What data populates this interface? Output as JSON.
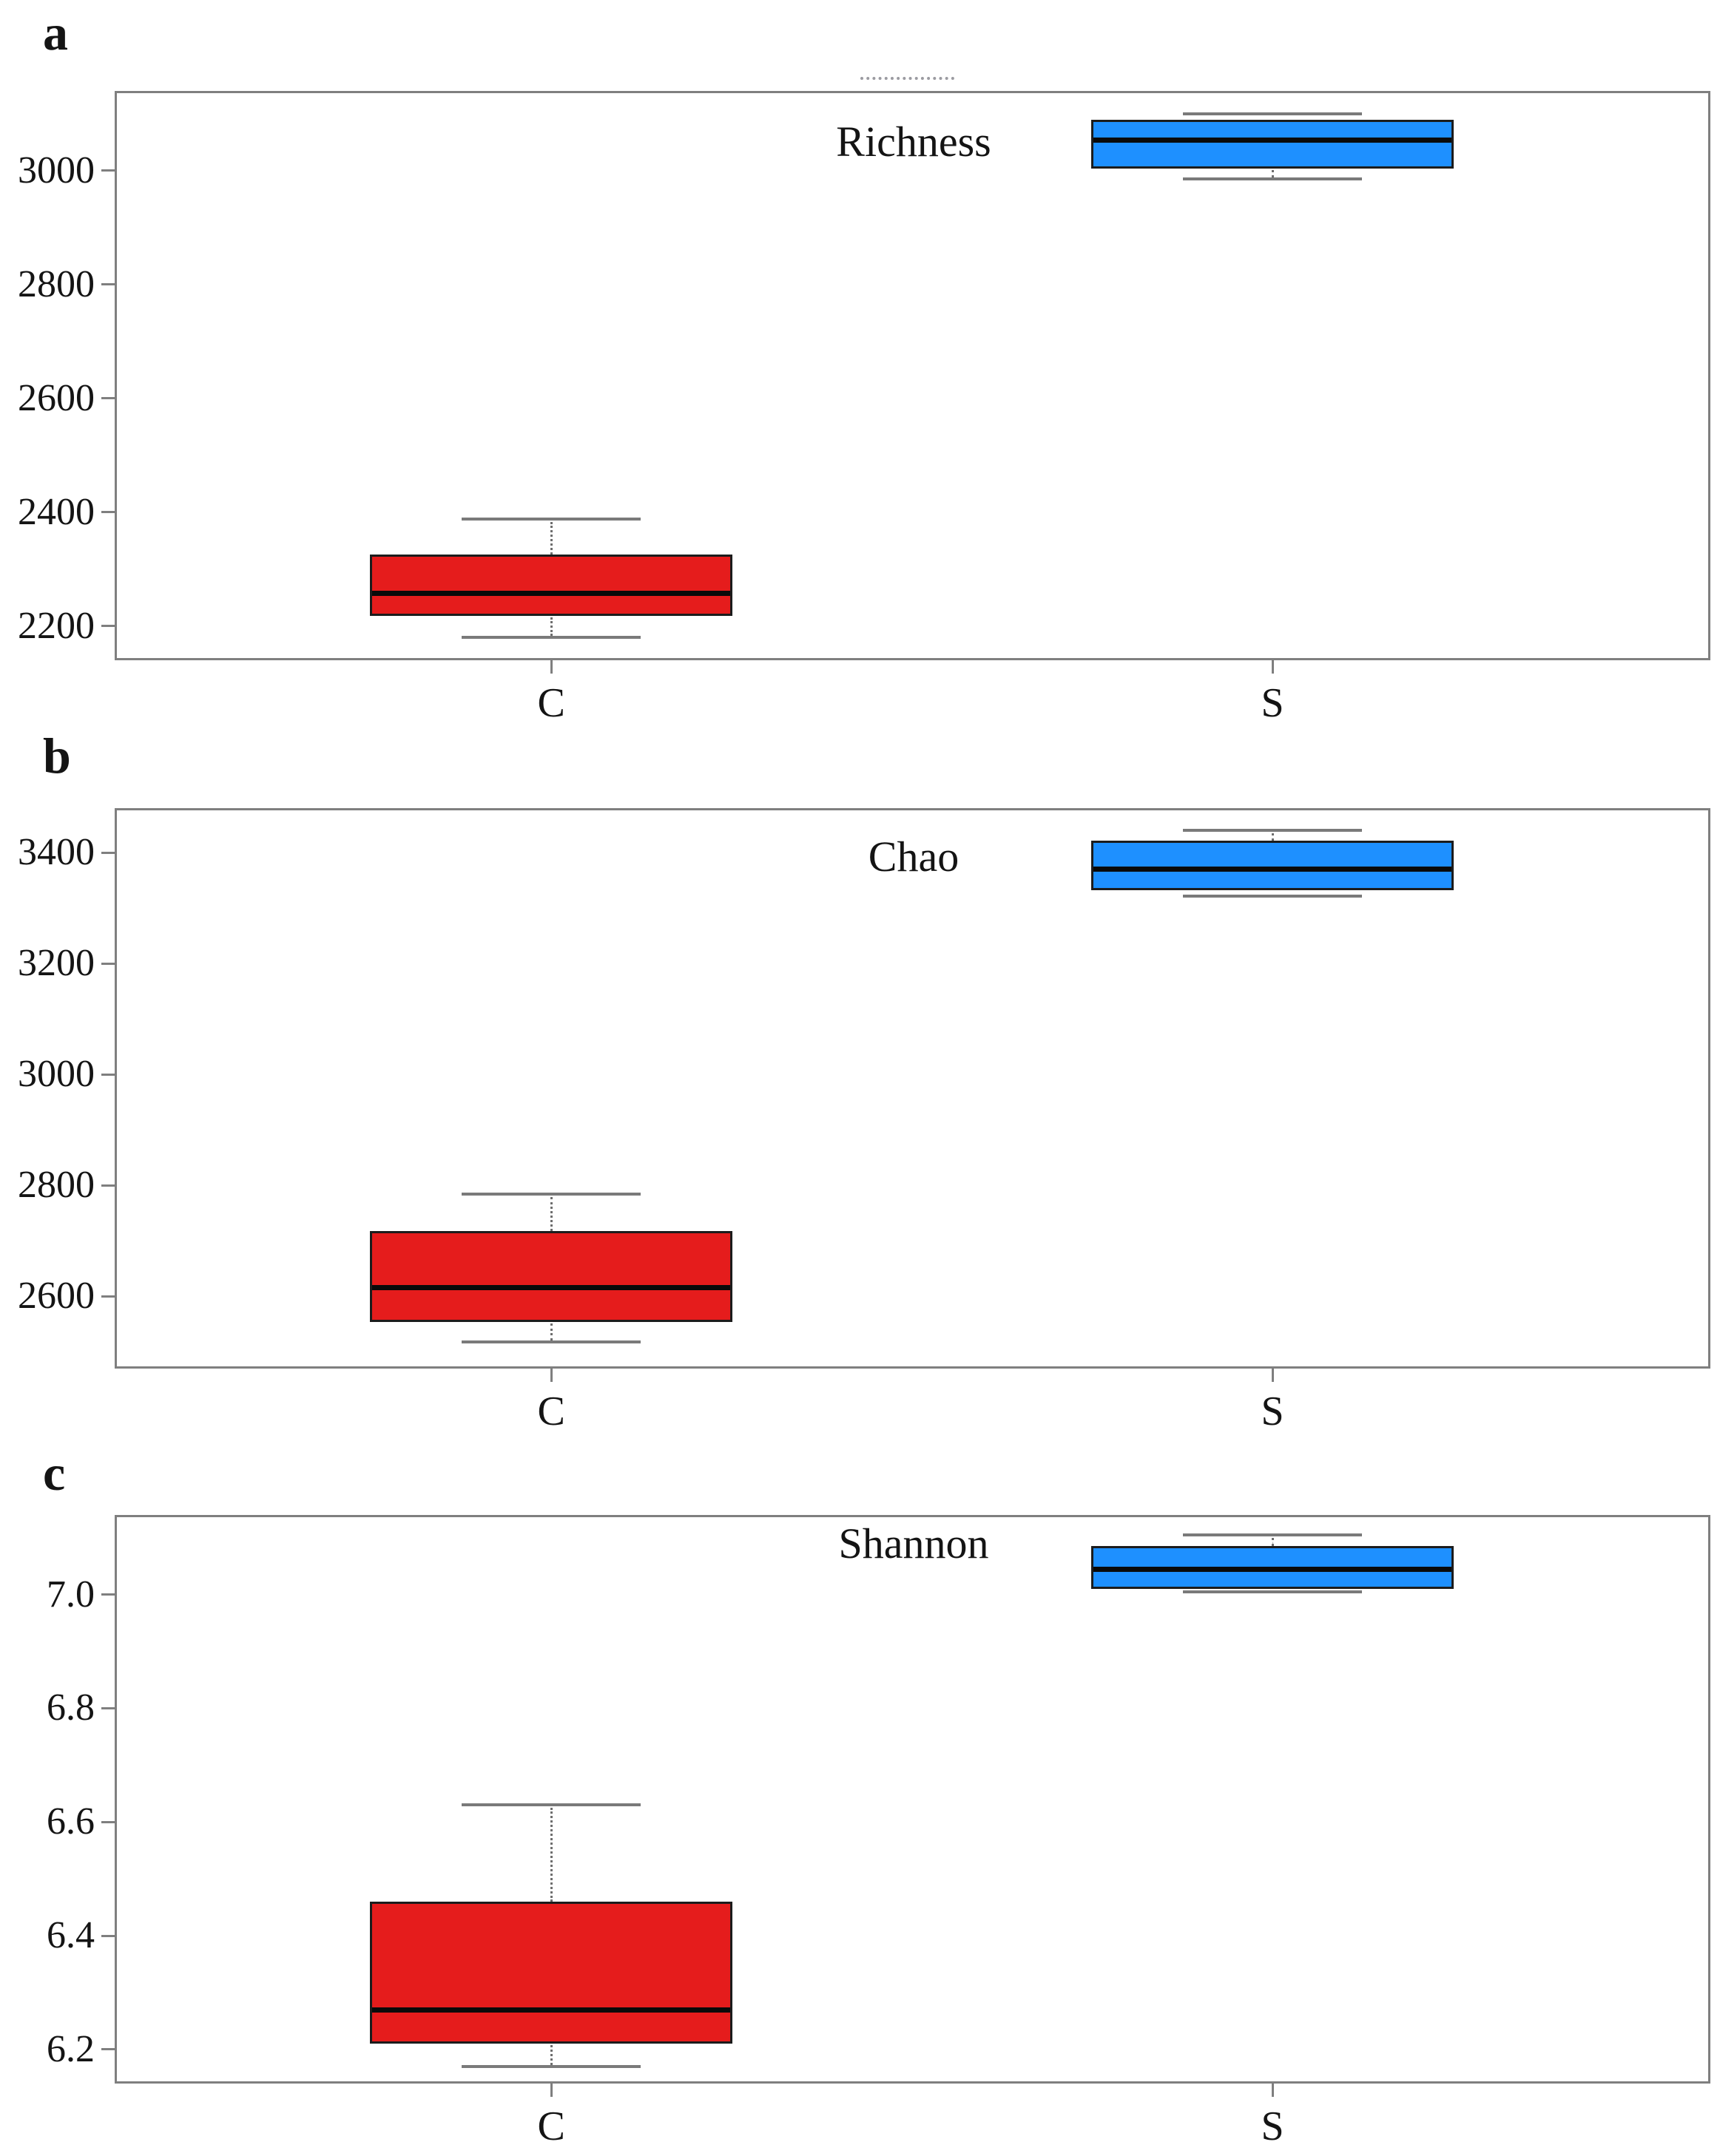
{
  "figure": {
    "background": "#ffffff",
    "groups": [
      "C",
      "S"
    ]
  },
  "colors": {
    "group_C_fill": "#e51c1c",
    "group_S_fill": "#1e90ff",
    "box_border": "#1c1c1c",
    "median_line": "#0a0a0a",
    "whisker_gray": "#7a7a7a",
    "frame_gray": "#7f7f7f",
    "tick_text": "#141414",
    "artifact_dots": "#9b9ba1"
  },
  "chart_data": [
    {
      "type": "box",
      "panel_letter": "a",
      "title": "Richness",
      "categories": [
        "C",
        "S"
      ],
      "ylim": [
        2140,
        3140
      ],
      "yticks": [
        {
          "v": 2200,
          "label": "2200"
        },
        {
          "v": 2400,
          "label": "2400"
        },
        {
          "v": 2600,
          "label": "2600"
        },
        {
          "v": 2800,
          "label": "2800"
        },
        {
          "v": 3000,
          "label": "3000"
        }
      ],
      "series": [
        {
          "name": "C",
          "min": 2180,
          "q1": 2218,
          "median": 2258,
          "q3": 2326,
          "max": 2388,
          "color_key": "group_C_fill"
        },
        {
          "name": "S",
          "min": 2985,
          "q1": 3003,
          "median": 3053,
          "q3": 3090,
          "max": 3100,
          "color_key": "group_S_fill"
        }
      ],
      "grid": false,
      "legend": "none",
      "artifact": "faint dotted clipped-text marks above top frame"
    },
    {
      "type": "box",
      "panel_letter": "b",
      "title": "Chao",
      "categories": [
        "C",
        "S"
      ],
      "ylim": [
        2470,
        3480
      ],
      "yticks": [
        {
          "v": 2600,
          "label": "2600"
        },
        {
          "v": 2800,
          "label": "2800"
        },
        {
          "v": 3000,
          "label": "3000"
        },
        {
          "v": 3200,
          "label": "3200"
        },
        {
          "v": 3400,
          "label": "3400"
        }
      ],
      "series": [
        {
          "name": "C",
          "min": 2518,
          "q1": 2554,
          "median": 2616,
          "q3": 2718,
          "max": 2784,
          "color_key": "group_C_fill"
        },
        {
          "name": "S",
          "min": 3322,
          "q1": 3332,
          "median": 3370,
          "q3": 3421,
          "max": 3440,
          "color_key": "group_S_fill"
        }
      ],
      "grid": false,
      "legend": "none",
      "artifact": null
    },
    {
      "type": "box",
      "panel_letter": "c",
      "title": "Shannon",
      "categories": [
        "C",
        "S"
      ],
      "ylim": [
        6.14,
        7.14
      ],
      "yticks": [
        {
          "v": 6.2,
          "label": "6.2"
        },
        {
          "v": 6.4,
          "label": "6.4"
        },
        {
          "v": 6.6,
          "label": "6.6"
        },
        {
          "v": 6.8,
          "label": "6.8"
        },
        {
          "v": 7.0,
          "label": "7.0"
        }
      ],
      "series": [
        {
          "name": "C",
          "min": 6.17,
          "q1": 6.21,
          "median": 6.27,
          "q3": 6.46,
          "max": 6.63,
          "color_key": "group_C_fill"
        },
        {
          "name": "S",
          "min": 7.005,
          "q1": 7.01,
          "median": 7.045,
          "q3": 7.085,
          "max": 7.105,
          "color_key": "group_S_fill"
        }
      ],
      "grid": false,
      "legend": "none",
      "artifact": null
    }
  ]
}
